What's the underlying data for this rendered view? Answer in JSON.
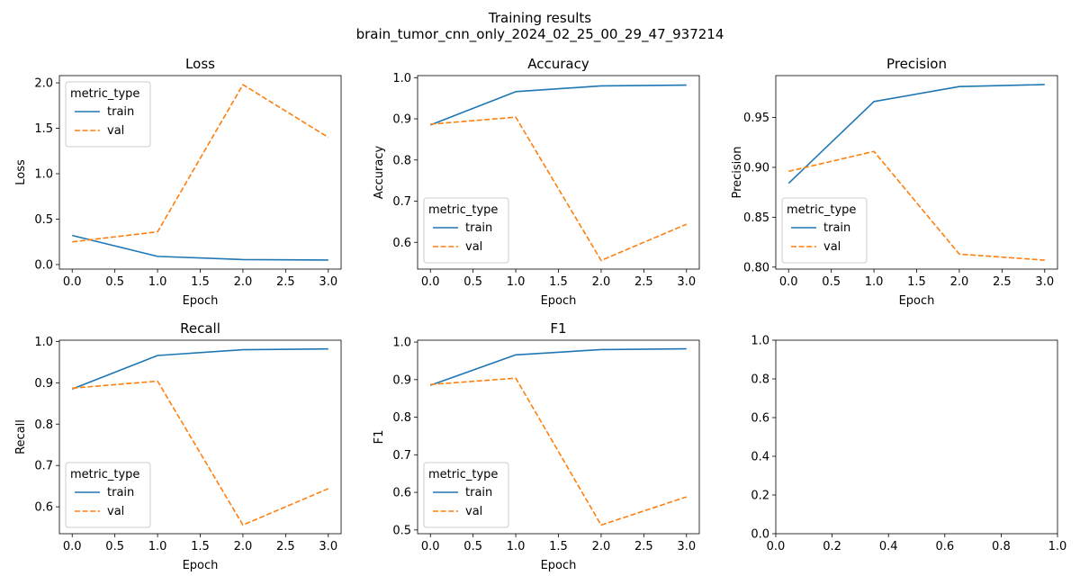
{
  "figure": {
    "title_line1": "Training results",
    "title_line2": "brain_tumor_cnn_only_2024_02_25_00_29_47_937214"
  },
  "colors": {
    "train": "#1f77b4",
    "val": "#ff7f0e"
  },
  "chart_data": [
    {
      "type": "line",
      "title": "Loss",
      "xlabel": "Epoch",
      "ylabel": "Loss",
      "x": [
        0,
        1,
        2,
        3
      ],
      "xlim": [
        -0.15,
        3.15
      ],
      "ylim": [
        -0.05,
        2.08
      ],
      "xticks": [
        "0.0",
        "0.5",
        "1.0",
        "1.5",
        "2.0",
        "2.5",
        "3.0"
      ],
      "yticks": [
        "0.0",
        "0.5",
        "1.0",
        "1.5",
        "2.0"
      ],
      "legend": {
        "title": "metric_type",
        "loc": "upper left"
      },
      "series": [
        {
          "name": "train",
          "style": "solid",
          "values": [
            0.32,
            0.09,
            0.055,
            0.05
          ]
        },
        {
          "name": "val",
          "style": "dashed",
          "values": [
            0.25,
            0.36,
            1.98,
            1.4
          ]
        }
      ]
    },
    {
      "type": "line",
      "title": "Accuracy",
      "xlabel": "Epoch",
      "ylabel": "Accuracy",
      "x": [
        0,
        1,
        2,
        3
      ],
      "xlim": [
        -0.15,
        3.15
      ],
      "ylim": [
        0.535,
        1.005
      ],
      "xticks": [
        "0.0",
        "0.5",
        "1.0",
        "1.5",
        "2.0",
        "2.5",
        "3.0"
      ],
      "yticks": [
        "0.6",
        "0.7",
        "0.8",
        "0.9",
        "1.0"
      ],
      "legend": {
        "title": "metric_type",
        "loc": "lower left"
      },
      "series": [
        {
          "name": "train",
          "style": "solid",
          "values": [
            0.885,
            0.966,
            0.98,
            0.982
          ]
        },
        {
          "name": "val",
          "style": "dashed",
          "values": [
            0.887,
            0.904,
            0.556,
            0.644
          ]
        }
      ]
    },
    {
      "type": "line",
      "title": "Precision",
      "xlabel": "Epoch",
      "ylabel": "Precision",
      "x": [
        0,
        1,
        2,
        3
      ],
      "xlim": [
        -0.15,
        3.15
      ],
      "ylim": [
        0.798,
        0.992
      ],
      "xticks": [
        "0.0",
        "0.5",
        "1.0",
        "1.5",
        "2.0",
        "2.5",
        "3.0"
      ],
      "yticks": [
        "0.80",
        "0.85",
        "0.90",
        "0.95"
      ],
      "legend": {
        "title": "metric_type",
        "loc": "lower left"
      },
      "series": [
        {
          "name": "train",
          "style": "solid",
          "values": [
            0.884,
            0.966,
            0.981,
            0.983
          ]
        },
        {
          "name": "val",
          "style": "dashed",
          "values": [
            0.896,
            0.916,
            0.813,
            0.807
          ]
        }
      ]
    },
    {
      "type": "line",
      "title": "Recall",
      "xlabel": "Epoch",
      "ylabel": "Recall",
      "x": [
        0,
        1,
        2,
        3
      ],
      "xlim": [
        -0.15,
        3.15
      ],
      "ylim": [
        0.535,
        1.003
      ],
      "xticks": [
        "0.0",
        "0.5",
        "1.0",
        "1.5",
        "2.0",
        "2.5",
        "3.0"
      ],
      "yticks": [
        "0.6",
        "0.7",
        "0.8",
        "0.9",
        "1.0"
      ],
      "legend": {
        "title": "metric_type",
        "loc": "lower left"
      },
      "series": [
        {
          "name": "train",
          "style": "solid",
          "values": [
            0.885,
            0.966,
            0.98,
            0.982
          ]
        },
        {
          "name": "val",
          "style": "dashed",
          "values": [
            0.887,
            0.904,
            0.556,
            0.644
          ]
        }
      ]
    },
    {
      "type": "line",
      "title": "F1",
      "xlabel": "Epoch",
      "ylabel": "F1",
      "x": [
        0,
        1,
        2,
        3
      ],
      "xlim": [
        -0.15,
        3.15
      ],
      "ylim": [
        0.49,
        1.005
      ],
      "xticks": [
        "0.0",
        "0.5",
        "1.0",
        "1.5",
        "2.0",
        "2.5",
        "3.0"
      ],
      "yticks": [
        "0.5",
        "0.6",
        "0.7",
        "0.8",
        "0.9",
        "1.0"
      ],
      "legend": {
        "title": "metric_type",
        "loc": "lower left"
      },
      "series": [
        {
          "name": "train",
          "style": "solid",
          "values": [
            0.885,
            0.966,
            0.98,
            0.982
          ]
        },
        {
          "name": "val",
          "style": "dashed",
          "values": [
            0.887,
            0.904,
            0.513,
            0.588
          ]
        }
      ]
    },
    {
      "type": "line",
      "title": "",
      "xlabel": "",
      "ylabel": "",
      "x": [],
      "xlim": [
        0,
        1
      ],
      "ylim": [
        0,
        1
      ],
      "xticks": [
        "0.0",
        "0.2",
        "0.4",
        "0.6",
        "0.8",
        "1.0"
      ],
      "yticks": [
        "0.0",
        "0.2",
        "0.4",
        "0.6",
        "0.8",
        "1.0"
      ],
      "series": []
    }
  ]
}
